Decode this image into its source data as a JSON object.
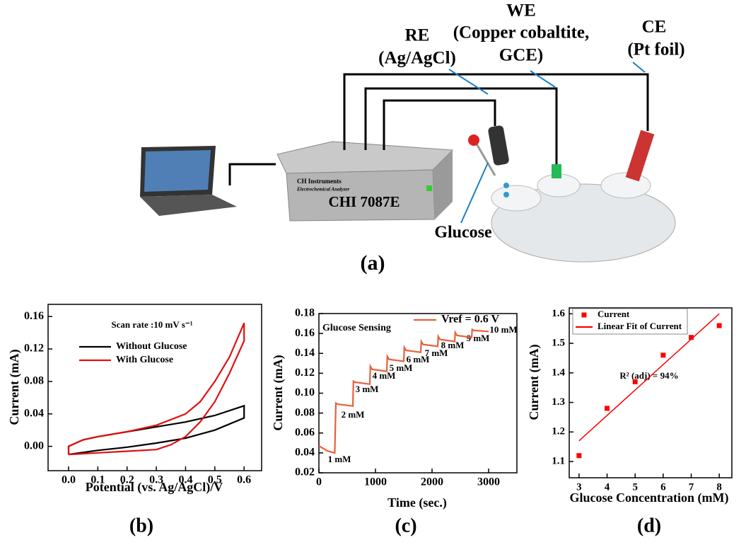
{
  "diagram": {
    "re_label": "RE",
    "re_detail": "(Ag/AgCl)",
    "we_label": "WE",
    "we_detail_1": "(Copper cobaltite,",
    "we_detail_2": "GCE)",
    "ce_label": "CE",
    "ce_detail": "(Pt foil)",
    "glucose": "Glucose",
    "instrument_brand": "CH Instruments",
    "instrument_subtitle": "Electrochemical Analyzer",
    "instrument_model": "CHI 7087E",
    "panel_label": "(a)"
  },
  "chart_data": [
    {
      "type": "line",
      "panel_label": "(b)",
      "annotation": "Scan rate :10 mV s⁻¹",
      "xlabel": "Potential (vs. Ag/AgCl)/V",
      "ylabel": "Current (mA)",
      "xlim": [
        -0.07,
        0.66
      ],
      "xticks": [
        {
          "value": 0,
          "label": "0.0"
        },
        0.1,
        0.2,
        0.3,
        0.4,
        0.5,
        0.6
      ],
      "ylim": [
        -0.03,
        0.175
      ],
      "yticks": [
        {
          "value": 0,
          "label": "0.00"
        },
        0.04,
        0.08,
        0.12,
        0.16
      ],
      "series": [
        {
          "name": "Without Glucose",
          "color": "#000000",
          "x": [
            0,
            0,
            0.05,
            0.1,
            0.2,
            0.3,
            0.4,
            0.5,
            0.6,
            0.6,
            0.5,
            0.4,
            0.3,
            0.2,
            0.1,
            0
          ],
          "values": [
            -0.01,
            0,
            0.008,
            0.012,
            0.018,
            0.024,
            0.03,
            0.038,
            0.05,
            0.035,
            0.02,
            0.01,
            0.004,
            -0.001,
            -0.005,
            -0.01
          ]
        },
        {
          "name": "With Glucose",
          "color": "#e01010",
          "x": [
            0,
            0,
            0.05,
            0.1,
            0.2,
            0.3,
            0.4,
            0.45,
            0.5,
            0.55,
            0.6,
            0.6,
            0.55,
            0.5,
            0.45,
            0.4,
            0.35,
            0.3,
            0.2,
            0.1,
            0
          ],
          "values": [
            -0.01,
            0,
            0.008,
            0.012,
            0.018,
            0.026,
            0.04,
            0.055,
            0.08,
            0.11,
            0.152,
            0.13,
            0.09,
            0.055,
            0.03,
            0.012,
            0.002,
            -0.004,
            -0.006,
            -0.008,
            -0.01
          ]
        }
      ]
    },
    {
      "type": "line",
      "panel_label": "(c)",
      "annotation": "Glucose Sensing",
      "xlabel": "Time (sec.)",
      "ylabel": "Current (mA)",
      "step_labels": [
        "1 mM",
        "2 mM",
        "3 mM",
        "4 mM",
        "5 mM",
        "6 mM",
        "7 mM",
        "8 mM",
        "9 mM",
        "10 mM"
      ],
      "xlim": [
        0,
        3500
      ],
      "xticks": [
        0,
        1000,
        2000,
        3000
      ],
      "ylim": [
        0.02,
        0.18
      ],
      "yticks": [
        0.02,
        0.04,
        0.06,
        0.08,
        {
          "value": 0.1,
          "label": "0.10"
        },
        0.12,
        0.14,
        0.16,
        0.18
      ],
      "x": [
        0,
        150,
        280,
        300,
        330,
        600,
        610,
        640,
        900,
        910,
        940,
        1200,
        1210,
        1240,
        1500,
        1510,
        1540,
        1800,
        1810,
        1840,
        2100,
        2110,
        2140,
        2400,
        2410,
        2440,
        2700,
        2710,
        2740,
        3000
      ],
      "series": [
        {
          "name": "Vref = 0.6 V",
          "color": "#e8603c",
          "values": [
            0.047,
            0.042,
            0.04,
            0.09,
            0.089,
            0.087,
            0.112,
            0.111,
            0.109,
            0.127,
            0.124,
            0.122,
            0.137,
            0.134,
            0.132,
            0.146,
            0.143,
            0.141,
            0.152,
            0.149,
            0.147,
            0.157,
            0.154,
            0.152,
            0.161,
            0.158,
            0.156,
            0.164,
            0.163,
            0.162
          ]
        }
      ]
    },
    {
      "type": "scatter",
      "panel_label": "(d)",
      "annotation": "R² (adj) = 94%",
      "xlabel": "Glucose Concentration (mM)",
      "ylabel": "Current (mA)",
      "xlim": [
        2.65,
        8.45
      ],
      "xticks": [
        3,
        4,
        5,
        6,
        7,
        8
      ],
      "ylim": [
        1.045,
        1.62
      ],
      "yticks": [
        1.1,
        1.2,
        1.3,
        1.4,
        1.5,
        1.6
      ],
      "series": [
        {
          "name": "Current",
          "color": "#ff0000",
          "style": "markers",
          "x": [
            3,
            4,
            5,
            6,
            7,
            8
          ],
          "values": [
            1.12,
            1.28,
            1.37,
            1.46,
            1.52,
            1.56
          ]
        },
        {
          "name": "Linear Fit of Current",
          "color": "#ff0000",
          "style": "line",
          "x": [
            3,
            8
          ],
          "values": [
            1.17,
            1.6
          ]
        }
      ]
    }
  ]
}
